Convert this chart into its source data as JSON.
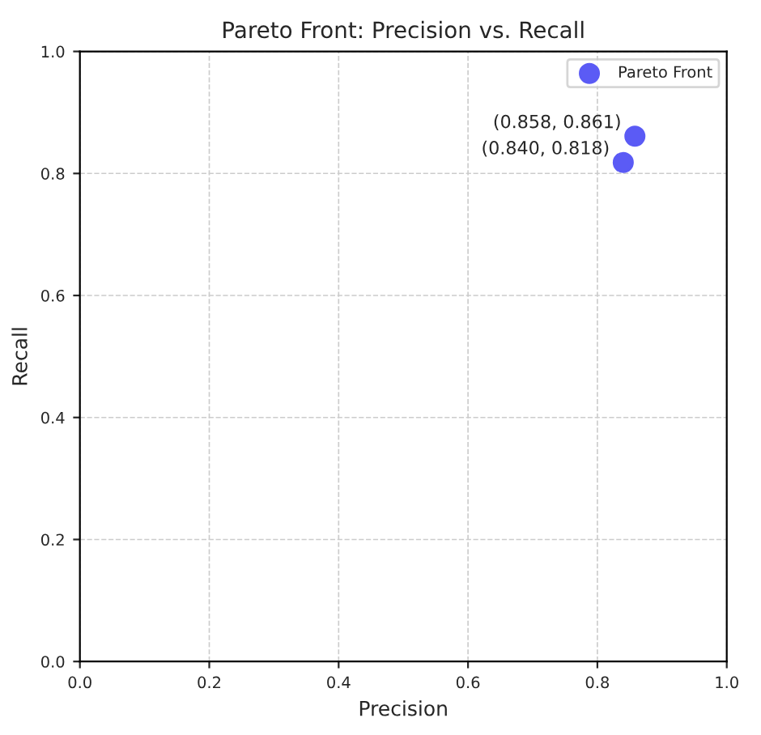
{
  "chart_data": {
    "type": "scatter",
    "title": "Pareto Front: Precision vs. Recall",
    "xlabel": "Precision",
    "ylabel": "Recall",
    "x": [
      0.858,
      0.84
    ],
    "series": [
      {
        "name": "Pareto Front",
        "color": "#5b5bf5",
        "values": [
          0.861,
          0.818
        ]
      }
    ],
    "annotations": [
      {
        "text": "(0.858, 0.861)",
        "x": 0.858,
        "y": 0.861
      },
      {
        "text": "(0.840, 0.818)",
        "x": 0.84,
        "y": 0.818
      }
    ],
    "xlim": [
      0,
      1
    ],
    "ylim": [
      0,
      1
    ],
    "xticks": [
      {
        "value": 0,
        "label": "0.0"
      },
      {
        "value": 0.2,
        "label": "0.2"
      },
      {
        "value": 0.4,
        "label": "0.4"
      },
      {
        "value": 0.6,
        "label": "0.6"
      },
      {
        "value": 0.8,
        "label": "0.8"
      },
      {
        "value": 1,
        "label": "1.0"
      }
    ],
    "yticks": [
      {
        "value": 0,
        "label": "0.0"
      },
      {
        "value": 0.2,
        "label": "0.2"
      },
      {
        "value": 0.4,
        "label": "0.4"
      },
      {
        "value": 0.6,
        "label": "0.6"
      },
      {
        "value": 0.8,
        "label": "0.8"
      },
      {
        "value": 1,
        "label": "1.0"
      }
    ],
    "grid": true,
    "legend": "top right",
    "marker": "circle"
  }
}
